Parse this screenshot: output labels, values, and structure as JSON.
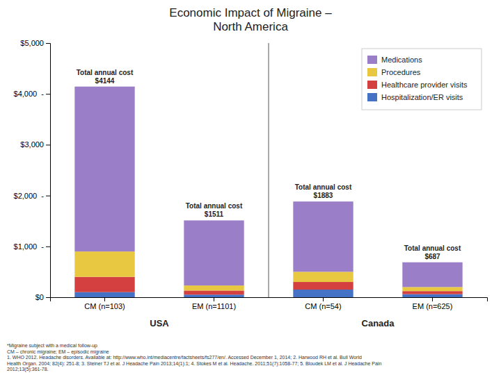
{
  "chart_data": {
    "type": "bar",
    "stacked": true,
    "title": "Economic Impact of Migraine –\nNorth America",
    "categories": [
      "CM (n=103)",
      "EM (n=1101)",
      "CM (n=54)",
      "EM (n=625)"
    ],
    "series": [
      {
        "name": "Hospitalization/ER visits",
        "color": "#4472C4",
        "values": [
          100,
          51,
          150,
          60
        ]
      },
      {
        "name": "Healthcare provider visits",
        "color": "#D44040",
        "values": [
          300,
          80,
          150,
          60
        ]
      },
      {
        "name": "Procedures",
        "color": "#E8C840",
        "values": [
          500,
          100,
          200,
          80
        ]
      },
      {
        "name": "Medications",
        "color": "#9B7EC8",
        "values": [
          3244,
          1280,
          1383,
          487
        ]
      }
    ],
    "totals": [
      4144,
      1511,
      1883,
      687
    ],
    "total_labels": [
      "Total annual cost\n$4144",
      "Total annual cost\n$1511",
      "Total annual cost\n$1883",
      "Total annual cost\n$687"
    ],
    "groups": [
      {
        "label": "USA",
        "members": [
          "CM (n=103)",
          "EM (n=1101)"
        ]
      },
      {
        "label": "Canada",
        "members": [
          "CM (n=54)",
          "EM (n=625)"
        ]
      }
    ],
    "ylim": [
      0,
      5000
    ],
    "yticks": [
      {
        "value": 0,
        "label": "$0"
      },
      {
        "value": 1000,
        "label": "$1,000  -"
      },
      {
        "value": 2000,
        "label": "$2,000  -"
      },
      {
        "value": 3000,
        "label": "$3,000"
      },
      {
        "value": 4000,
        "label": "$4,000  -"
      },
      {
        "value": 5000,
        "label": "$5,000"
      }
    ],
    "grid": false,
    "legend": "upper right",
    "footnotes": [
      "*Migraine subject with a medical follow-up",
      "CM – chronic migraine; EM – episodic migraine",
      "1. WHO 2012. Headache disorders. Available at: http://www.who.int/mediacentre/factsheets/fs277/en/. Accessed December 1, 2014; 2. Harwood RH et al. Bull World",
      "Health Organ. 2004; 82(4): 251-8; 3. Steiner TJ et al. J Headache Pain 2013;14(1):1; 4. Stokes M et al. Headache. 2011;51(7):1058-77; 5. Bloudek LM et al. J Headache Pain",
      "2012;13(5):361-78."
    ]
  }
}
